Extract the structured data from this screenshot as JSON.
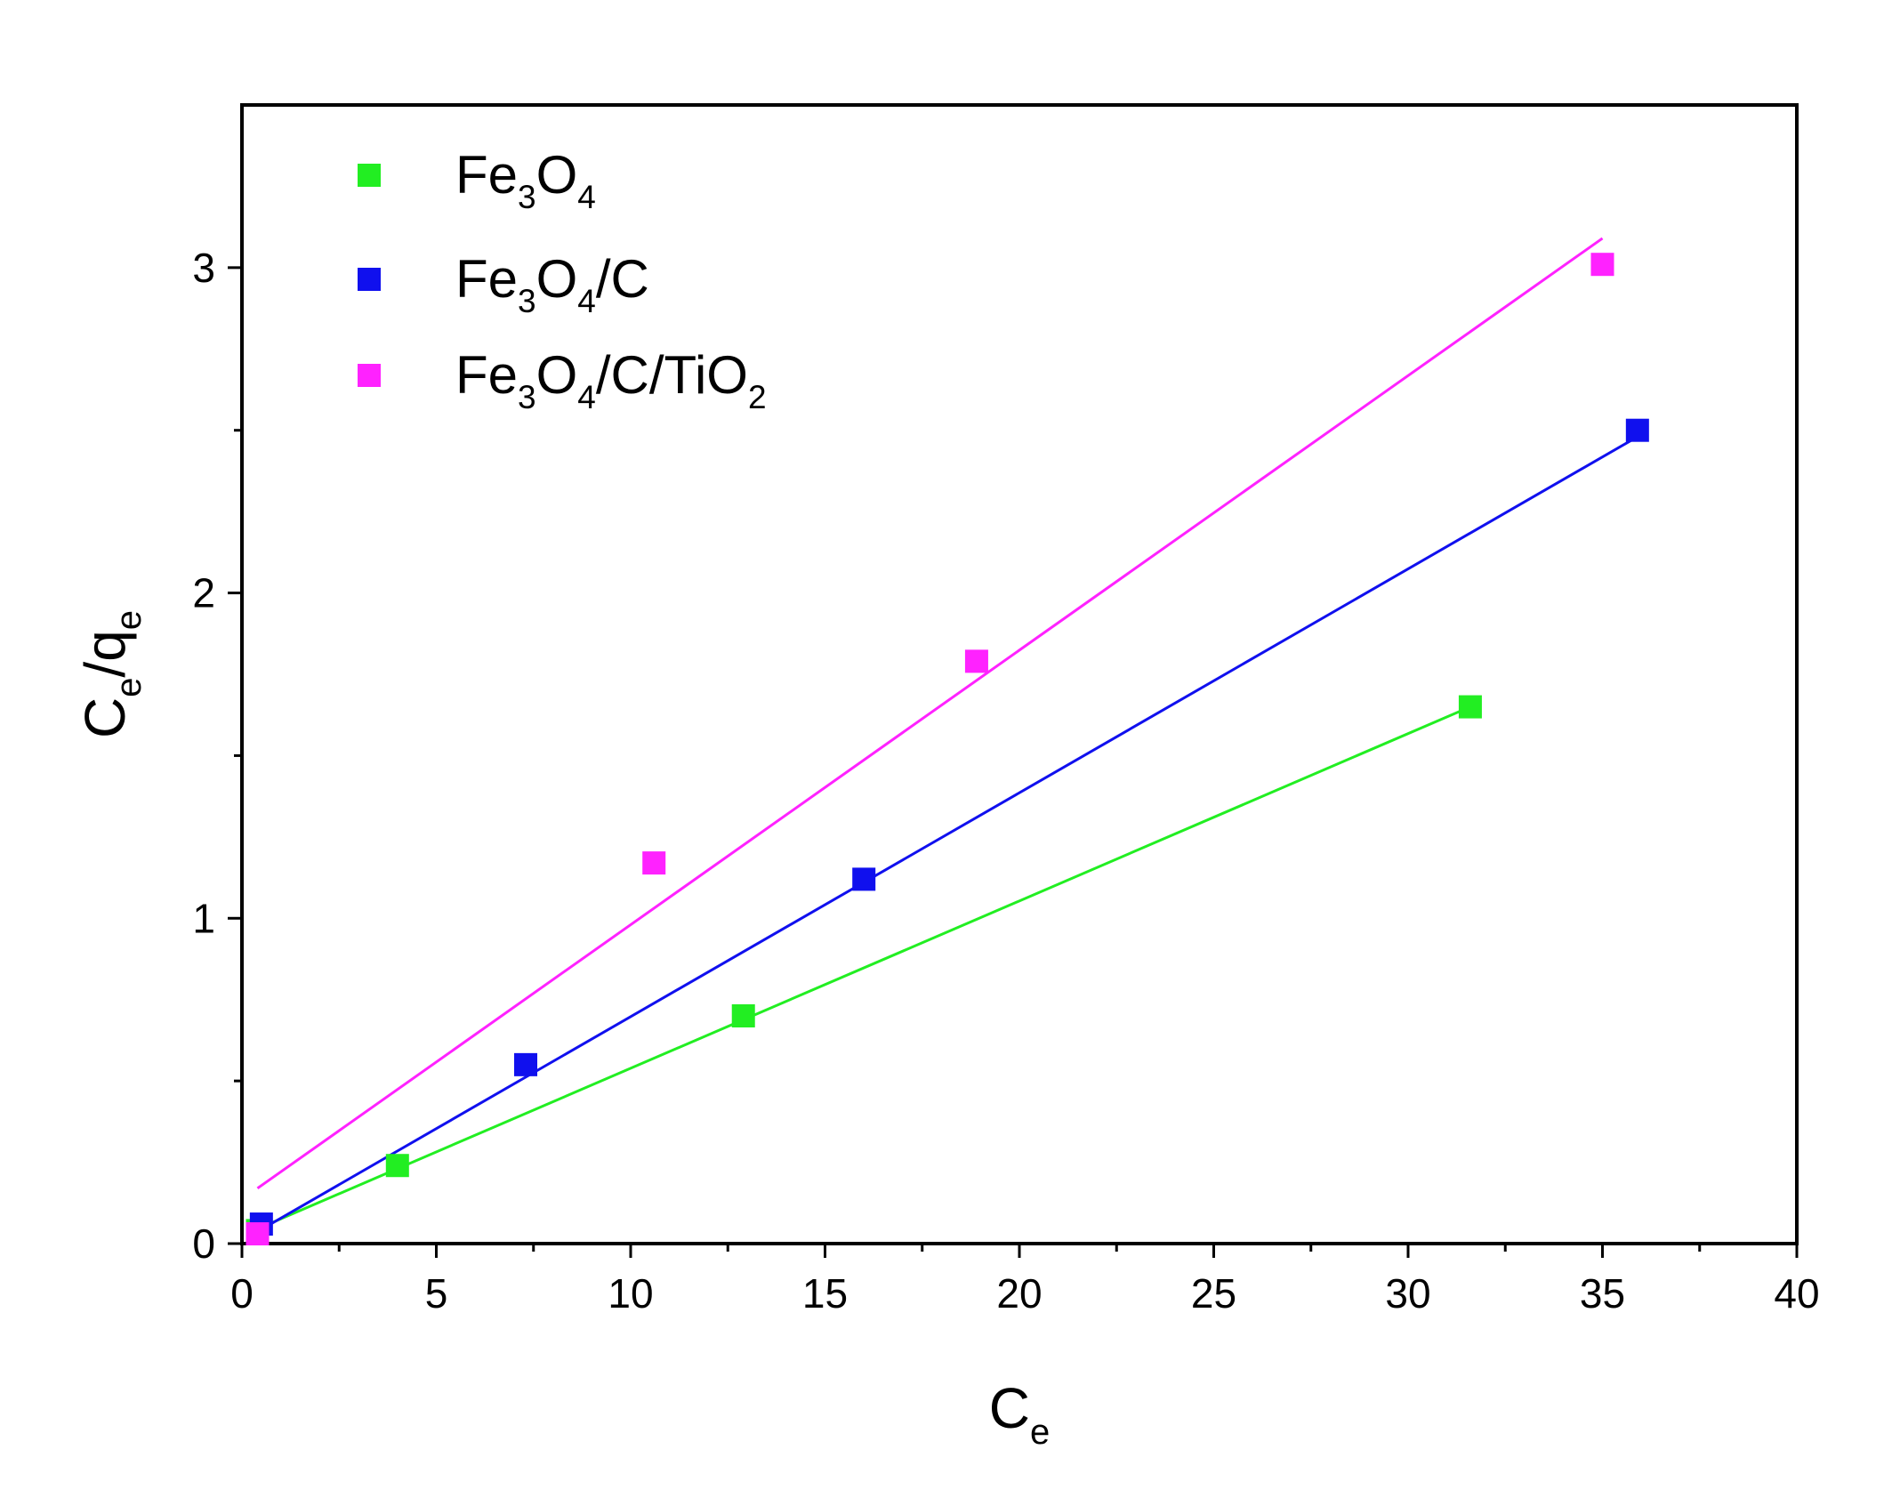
{
  "chart_data": {
    "type": "scatter",
    "title": "",
    "xlabel": {
      "main": "C",
      "sub": "e"
    },
    "ylabel": {
      "parts": [
        {
          "t": "C",
          "sub": false
        },
        {
          "t": "e",
          "sub": true
        },
        {
          "t": "/q",
          "sub": false
        },
        {
          "t": "e",
          "sub": true
        }
      ]
    },
    "xlim": [
      0,
      40
    ],
    "ylim": [
      0,
      3.5
    ],
    "x_ticks": [
      0,
      5,
      10,
      15,
      20,
      25,
      30,
      35,
      40
    ],
    "x_tick_labels": [
      "0",
      "5",
      "10",
      "15",
      "20",
      "25",
      "30",
      "35",
      "40"
    ],
    "y_ticks": [
      0,
      1,
      2,
      3
    ],
    "y_tick_labels": [
      "0",
      "1",
      "2",
      "3"
    ],
    "grid": false,
    "legend_position": "top-left",
    "series": [
      {
        "name": "Fe3O4",
        "name_parts": [
          {
            "t": "Fe",
            "sub": false
          },
          {
            "t": "3",
            "sub": true
          },
          {
            "t": "O",
            "sub": false
          },
          {
            "t": "4",
            "sub": true
          }
        ],
        "color": "#22ee22",
        "points": [
          [
            0.4,
            0.04
          ],
          [
            4.0,
            0.24
          ],
          [
            12.9,
            0.7
          ],
          [
            31.6,
            1.65
          ]
        ],
        "fit": [
          [
            0.3,
            0.04
          ],
          [
            31.6,
            1.65
          ]
        ]
      },
      {
        "name": "Fe3O4/C",
        "name_parts": [
          {
            "t": "Fe",
            "sub": false
          },
          {
            "t": "3",
            "sub": true
          },
          {
            "t": "O",
            "sub": false
          },
          {
            "t": "4",
            "sub": true
          },
          {
            "t": "/C",
            "sub": false
          }
        ],
        "color": "#1010ee",
        "points": [
          [
            0.5,
            0.06
          ],
          [
            7.3,
            0.55
          ],
          [
            16.0,
            1.12
          ],
          [
            35.9,
            2.5
          ]
        ],
        "fit": [
          [
            0.3,
            0.03
          ],
          [
            35.9,
            2.48
          ]
        ]
      },
      {
        "name": "Fe3O4/C/TiO2",
        "name_parts": [
          {
            "t": "Fe",
            "sub": false
          },
          {
            "t": "3",
            "sub": true
          },
          {
            "t": "O",
            "sub": false
          },
          {
            "t": "4",
            "sub": true
          },
          {
            "t": "/C/TiO",
            "sub": false
          },
          {
            "t": "2",
            "sub": true
          }
        ],
        "color": "#ff22ff",
        "points": [
          [
            0.4,
            0.03
          ],
          [
            10.6,
            1.17
          ],
          [
            18.9,
            1.79
          ],
          [
            35.0,
            3.01
          ]
        ],
        "fit": [
          [
            0.4,
            0.17
          ],
          [
            35.0,
            3.09
          ]
        ]
      }
    ]
  }
}
